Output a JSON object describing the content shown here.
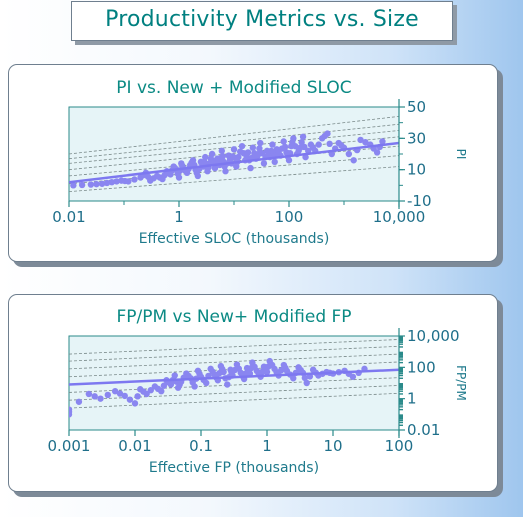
{
  "page_title": "Productivity Metrics vs. Size",
  "colors": {
    "title_text": "#008080",
    "plot_background": "#e6f4f7",
    "points": "#8a86f0",
    "trend_line": "#7d78f0",
    "gridlines": "#7a8a8a",
    "axis": "#2a8a8a"
  },
  "chart_data": [
    {
      "type": "scatter",
      "title": "PI vs. New + Modified SLOC",
      "xlabel": "Effective SLOC (thousands)",
      "ylabel": "PI",
      "x_scale": "log",
      "xlim": [
        0.01,
        10000
      ],
      "ylim": [
        -10,
        50
      ],
      "x_ticks": [
        "0.01",
        "1",
        "100",
        "10,000"
      ],
      "y_ticks": [
        "50",
        "30",
        "10",
        "-10"
      ],
      "grid": true,
      "trend": {
        "x": [
          0.01,
          10000
        ],
        "y": [
          2,
          27
        ]
      },
      "reference_lines": [
        {
          "x": [
            0.01,
            10000
          ],
          "y": [
            20,
            44
          ]
        },
        {
          "x": [
            0.01,
            10000
          ],
          "y": [
            17,
            39
          ]
        },
        {
          "x": [
            0.01,
            10000
          ],
          "y": [
            14,
            35
          ]
        },
        {
          "x": [
            0.01,
            10000
          ],
          "y": [
            10,
            31
          ]
        },
        {
          "x": [
            0.01,
            10000
          ],
          "y": [
            6,
            25
          ]
        },
        {
          "x": [
            0.01,
            10000
          ],
          "y": [
            1,
            19
          ]
        },
        {
          "x": [
            0.01,
            10000
          ],
          "y": [
            -4,
            12
          ]
        }
      ],
      "series": [
        {
          "values": [
            [
              0.012,
              0
            ],
            [
              0.025,
              0.5
            ],
            [
              0.04,
              1
            ],
            [
              0.06,
              2
            ],
            [
              0.09,
              3
            ],
            [
              0.12,
              2.5
            ],
            [
              0.2,
              5
            ],
            [
              0.25,
              8
            ],
            [
              0.3,
              3
            ],
            [
              0.4,
              6
            ],
            [
              0.5,
              4
            ],
            [
              0.6,
              9
            ],
            [
              0.7,
              7
            ],
            [
              0.8,
              12
            ],
            [
              0.9,
              10
            ],
            [
              1.0,
              5
            ],
            [
              1.1,
              14
            ],
            [
              1.2,
              11
            ],
            [
              1.4,
              8
            ],
            [
              1.6,
              13
            ],
            [
              1.8,
              16
            ],
            [
              2.0,
              10
            ],
            [
              2.2,
              6
            ],
            [
              2.5,
              15
            ],
            [
              2.8,
              12
            ],
            [
              3.0,
              18
            ],
            [
              3.3,
              9
            ],
            [
              3.6,
              14
            ],
            [
              4.0,
              20
            ],
            [
              4.5,
              11
            ],
            [
              5.0,
              17
            ],
            [
              5.5,
              13
            ],
            [
              6.0,
              22
            ],
            [
              6.5,
              15
            ],
            [
              7.0,
              9
            ],
            [
              8.0,
              19
            ],
            [
              9.0,
              14
            ],
            [
              10,
              23
            ],
            [
              11,
              12
            ],
            [
              12,
              18
            ],
            [
              14,
              25
            ],
            [
              16,
              16
            ],
            [
              18,
              21
            ],
            [
              20,
              11
            ],
            [
              22,
              24
            ],
            [
              25,
              17
            ],
            [
              28,
              20
            ],
            [
              30,
              27
            ],
            [
              35,
              14
            ],
            [
              40,
              22
            ],
            [
              45,
              18
            ],
            [
              50,
              26
            ],
            [
              55,
              15
            ],
            [
              60,
              23
            ],
            [
              70,
              19
            ],
            [
              80,
              28
            ],
            [
              90,
              21
            ],
            [
              100,
              16
            ],
            [
              110,
              25
            ],
            [
              120,
              30
            ],
            [
              140,
              20
            ],
            [
              160,
              24
            ],
            [
              180,
              31
            ],
            [
              200,
              18
            ],
            [
              250,
              26
            ],
            [
              300,
              22
            ],
            [
              400,
              30
            ],
            [
              500,
              33
            ],
            [
              600,
              20
            ],
            [
              800,
              27
            ],
            [
              1000,
              24
            ],
            [
              1500,
              16
            ],
            [
              2000,
              29
            ],
            [
              3000,
              26
            ],
            [
              4000,
              21
            ],
            [
              5000,
              28
            ]
          ]
        }
      ]
    },
    {
      "type": "scatter",
      "title": "FP/PM vs New+ Modified FP",
      "xlabel": "Effective FP (thousands)",
      "ylabel": "FP/PM",
      "x_scale": "log",
      "y_scale": "log",
      "xlim": [
        0.001,
        100
      ],
      "ylim": [
        0.01,
        10000
      ],
      "x_ticks": [
        "0.001",
        "0.01",
        "0.1",
        "1",
        "10",
        "100"
      ],
      "y_ticks": [
        "10,000",
        "100",
        "1",
        "0.01"
      ],
      "grid": true,
      "trend": {
        "x": [
          0.001,
          100
        ],
        "y": [
          8,
          70
        ]
      },
      "reference_lines": [
        {
          "x": [
            0.001,
            100
          ],
          "y": [
            700,
            6000
          ]
        },
        {
          "x": [
            0.001,
            100
          ],
          "y": [
            250,
            2200
          ]
        },
        {
          "x": [
            0.001,
            100
          ],
          "y": [
            80,
            700
          ]
        },
        {
          "x": [
            0.001,
            100
          ],
          "y": [
            25,
            220
          ]
        },
        {
          "x": [
            0.001,
            100
          ],
          "y": [
            2.5,
            22
          ]
        },
        {
          "x": [
            0.001,
            100
          ],
          "y": [
            0.8,
            7
          ]
        },
        {
          "x": [
            0.001,
            100
          ],
          "y": [
            0.25,
            2.2
          ]
        }
      ],
      "series": [
        {
          "values": [
            [
              0.001,
              0.1
            ],
            [
              0.001,
              0.2
            ],
            [
              0.002,
              2
            ],
            [
              0.003,
              1
            ],
            [
              0.005,
              3
            ],
            [
              0.007,
              1.5
            ],
            [
              0.01,
              0.5
            ],
            [
              0.012,
              4
            ],
            [
              0.015,
              2
            ],
            [
              0.02,
              6
            ],
            [
              0.025,
              3
            ],
            [
              0.03,
              15
            ],
            [
              0.035,
              8
            ],
            [
              0.04,
              30
            ],
            [
              0.045,
              5
            ],
            [
              0.05,
              12
            ],
            [
              0.06,
              40
            ],
            [
              0.07,
              20
            ],
            [
              0.08,
              6
            ],
            [
              0.09,
              60
            ],
            [
              0.1,
              25
            ],
            [
              0.12,
              10
            ],
            [
              0.14,
              80
            ],
            [
              0.16,
              35
            ],
            [
              0.18,
              15
            ],
            [
              0.2,
              120
            ],
            [
              0.22,
              50
            ],
            [
              0.25,
              8
            ],
            [
              0.28,
              70
            ],
            [
              0.3,
              30
            ],
            [
              0.35,
              150
            ],
            [
              0.4,
              45
            ],
            [
              0.45,
              18
            ],
            [
              0.5,
              90
            ],
            [
              0.55,
              40
            ],
            [
              0.6,
              200
            ],
            [
              0.7,
              60
            ],
            [
              0.8,
              25
            ],
            [
              0.9,
              110
            ],
            [
              1.0,
              50
            ],
            [
              1.1,
              250
            ],
            [
              1.3,
              80
            ],
            [
              1.5,
              30
            ],
            [
              1.8,
              140
            ],
            [
              2.0,
              60
            ],
            [
              2.5,
              20
            ],
            [
              3.0,
              100
            ],
            [
              3.5,
              45
            ],
            [
              4.0,
              10
            ],
            [
              5.0,
              70
            ],
            [
              6.0,
              30
            ],
            [
              8.0,
              50
            ],
            [
              10,
              40
            ],
            [
              15,
              60
            ],
            [
              20,
              25
            ],
            [
              30,
              80
            ]
          ]
        }
      ]
    }
  ]
}
